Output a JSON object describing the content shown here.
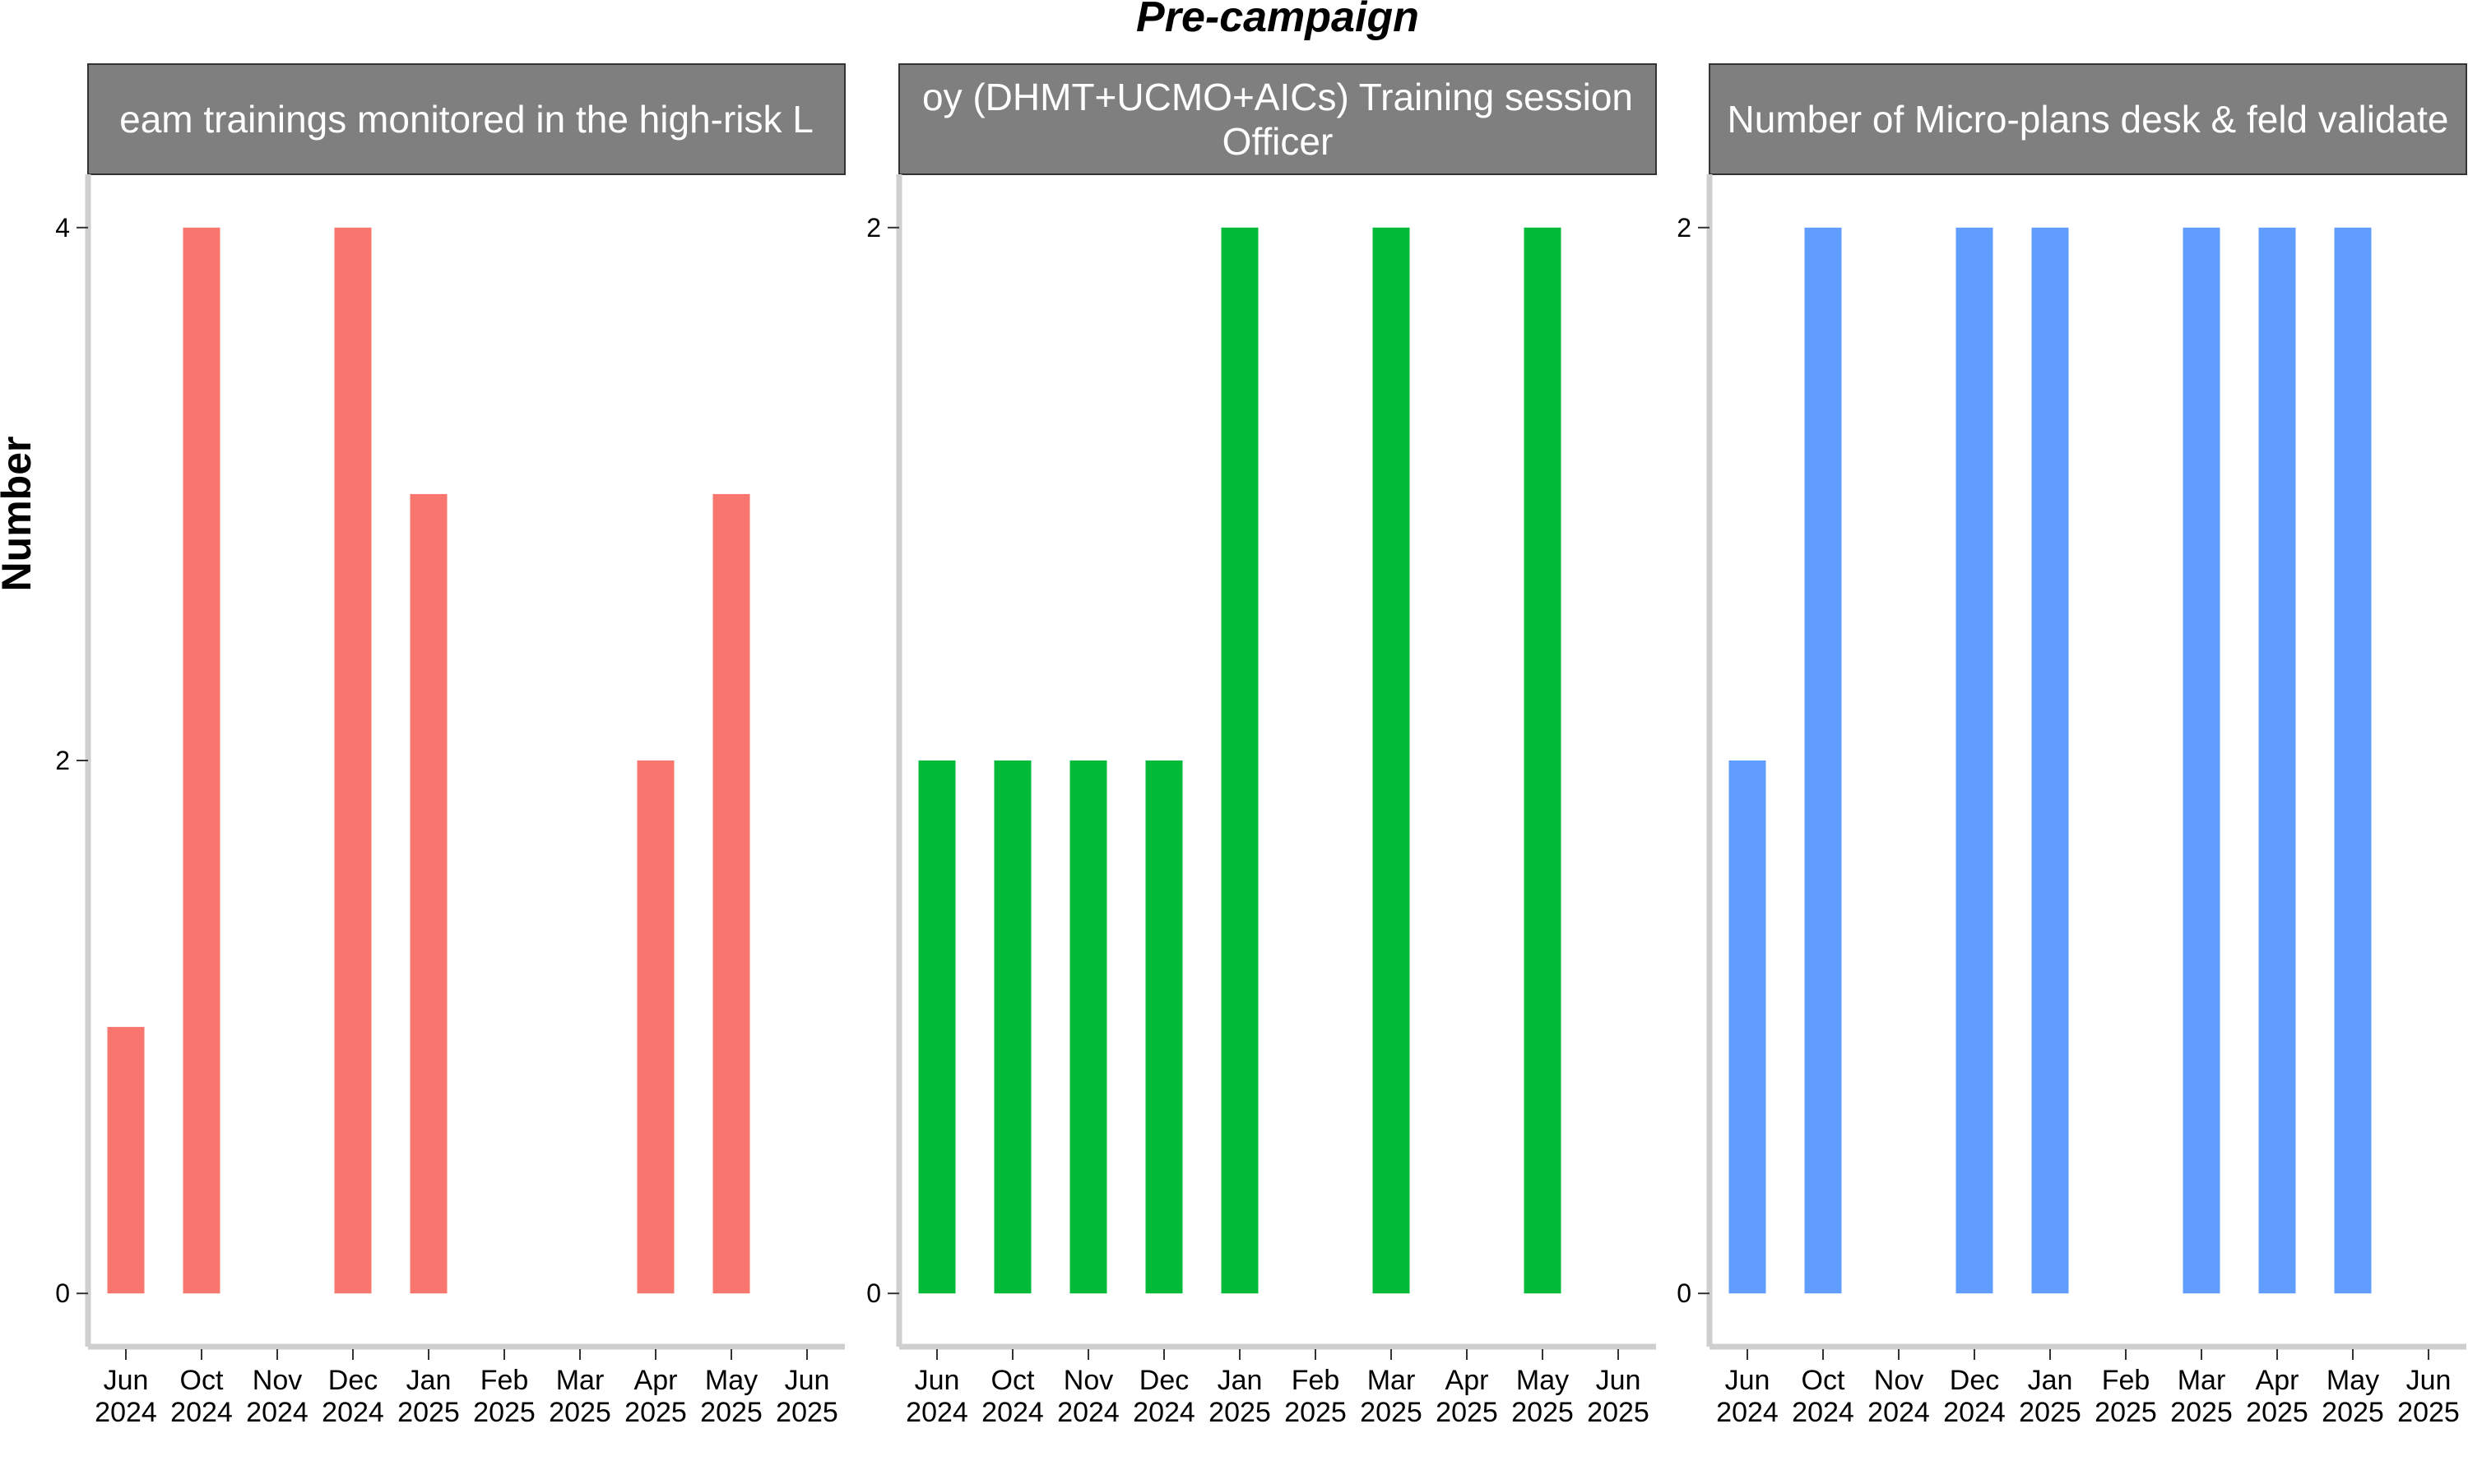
{
  "chart_data": {
    "type": "bar",
    "title": "Pre-campaign",
    "ylabel": "Number",
    "xlabel": "",
    "grid": false,
    "legend": "none",
    "categories": [
      [
        "Jun",
        "2024"
      ],
      [
        "Oct",
        "2024"
      ],
      [
        "Nov",
        "2024"
      ],
      [
        "Dec",
        "2024"
      ],
      [
        "Jan",
        "2025"
      ],
      [
        "Feb",
        "2025"
      ],
      [
        "Mar",
        "2025"
      ],
      [
        "Apr",
        "2025"
      ],
      [
        "May",
        "2025"
      ],
      [
        "Jun",
        "2025"
      ]
    ],
    "panels": [
      {
        "strip_lines": [
          "eam trainings monitored in the high-risk L"
        ],
        "color": "#F8766D",
        "ylim": [
          -0.2,
          4.2
        ],
        "yticks": [
          0,
          2,
          4
        ],
        "values": [
          1,
          4,
          0,
          4,
          3,
          0,
          0,
          2,
          3,
          0
        ]
      },
      {
        "strip_lines": [
          "oy (DHMT+UCMO+AICs) Training session",
          "Officer"
        ],
        "color": "#00BA38",
        "ylim": [
          -0.1,
          2.1
        ],
        "yticks": [
          0,
          2
        ],
        "values": [
          1,
          1,
          1,
          1,
          2,
          0,
          2,
          0,
          2,
          0
        ]
      },
      {
        "strip_lines": [
          "Number of Micro-plans desk & feld validate"
        ],
        "color": "#619CFF",
        "ylim": [
          -0.1,
          2.1
        ],
        "yticks": [
          0,
          2
        ],
        "values": [
          1,
          2,
          0,
          2,
          2,
          0,
          2,
          2,
          2,
          0
        ]
      }
    ]
  }
}
